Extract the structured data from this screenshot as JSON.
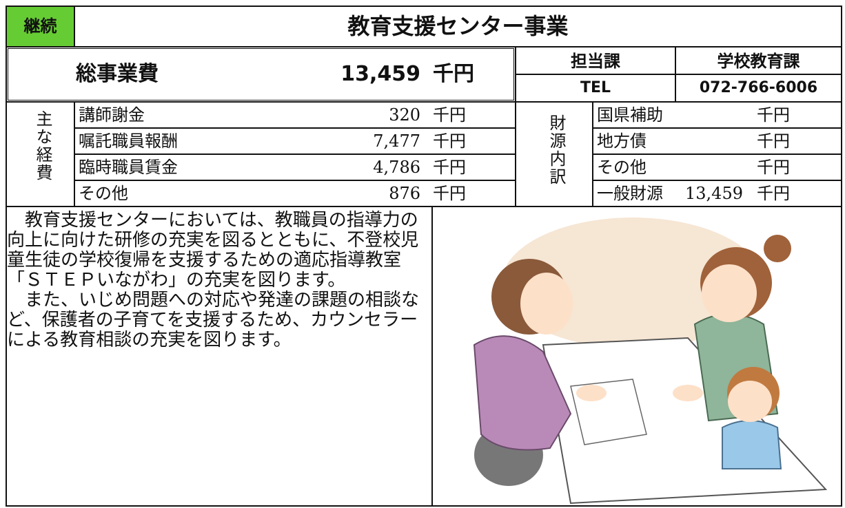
{
  "header": {
    "status": "継続",
    "title": "教育支援センター事業"
  },
  "total": {
    "label": "総事業費",
    "amount": "13,459",
    "unit": "千円"
  },
  "department": {
    "label": "担当課",
    "value": "学校教育課",
    "tel_label": "TEL",
    "tel": "072-766-6006"
  },
  "expenses": {
    "label": "主な経費",
    "rows": [
      {
        "name": "講師謝金",
        "amount": "320",
        "unit": "千円"
      },
      {
        "name": "嘱託職員報酬",
        "amount": "7,477",
        "unit": "千円"
      },
      {
        "name": "臨時職員賃金",
        "amount": "4,786",
        "unit": "千円"
      },
      {
        "name": "その他",
        "amount": "876",
        "unit": "千円"
      }
    ]
  },
  "funding": {
    "label": "財源内訳",
    "rows": [
      {
        "name": "国県補助",
        "unit": "千円"
      },
      {
        "name": "地方債",
        "unit": "千円"
      },
      {
        "name": "その他",
        "unit": "千円"
      },
      {
        "name": "一般財源",
        "amount": "13,459",
        "unit": "千円"
      }
    ]
  },
  "description": [
    "　教育支援センターにおいては、教職員の指導力の",
    "向上に向けた研修の充実を図るとともに、不登校児",
    "童生徒の学校復帰を支援するための適応指導教室",
    "「ＳＴＥＰいながわ」の充実を図ります。",
    "　また、いじめ問題への対応や発達の課題の相談な",
    "ど、保護者の子育てを支援するため、カウンセラー",
    "による教育相談の充実を図ります。"
  ]
}
